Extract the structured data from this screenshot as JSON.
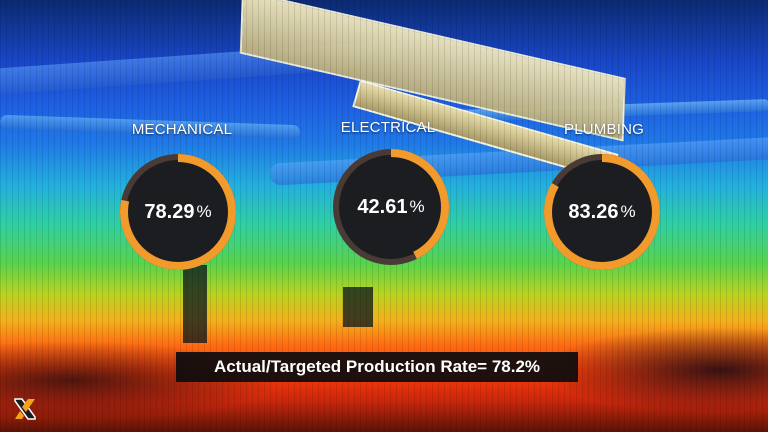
{
  "gauges": [
    {
      "title": "MECHANICAL",
      "display": "78.29",
      "unit": "%",
      "value": 78.29
    },
    {
      "title": "ELECTRICAL",
      "display": "42.61",
      "unit": "%",
      "value": 42.61
    },
    {
      "title": "PLUMBING",
      "display": "83.26",
      "unit": "%",
      "value": 83.26
    }
  ],
  "banner": {
    "text": "Actual/Targeted Production Rate= 78.2%"
  },
  "colors": {
    "gauge_arc": "#f39a2c",
    "gauge_arc_secondary": "#e8552a",
    "gauge_fill": "#1c1d21",
    "gauge_track": "#4a3a35"
  },
  "logo": {
    "icon": "brand-x-logo-icon"
  }
}
